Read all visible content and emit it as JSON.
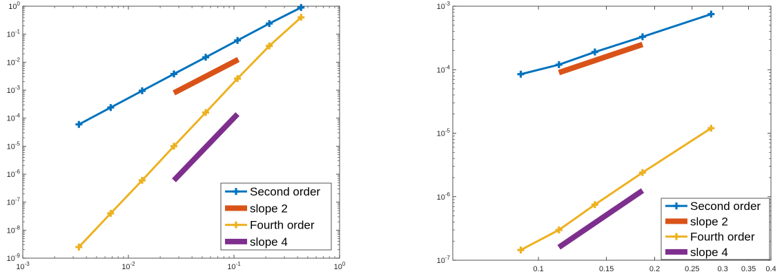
{
  "chart_data": [
    {
      "type": "line",
      "xscale": "log",
      "yscale": "log",
      "xlim": [
        0.001,
        1
      ],
      "ylim": [
        1e-09,
        1
      ],
      "xticks": [
        0.001,
        0.01,
        0.1,
        1
      ],
      "yticks": [
        1e-09,
        1e-08,
        1e-07,
        1e-06,
        1e-05,
        0.0001,
        0.001,
        0.01,
        0.1,
        1
      ],
      "grid": false,
      "legend_placement": "bottom-right",
      "series": [
        {
          "name": "Second order",
          "color": "#0072BD",
          "marker": "plus",
          "x": [
            0.0034,
            0.0068,
            0.0135,
            0.027,
            0.054,
            0.108,
            0.216,
            0.432
          ],
          "y": [
            6e-05,
            0.00024,
            0.00095,
            0.0038,
            0.015,
            0.06,
            0.24,
            0.9
          ]
        },
        {
          "name": "slope 2",
          "color": "#D95319",
          "marker": "none",
          "thick": true,
          "x": [
            0.027,
            0.11
          ],
          "y": [
            0.0008,
            0.0125
          ]
        },
        {
          "name": "Fourth order",
          "color": "#EDB120",
          "marker": "plus",
          "x": [
            0.0034,
            0.0068,
            0.0135,
            0.027,
            0.054,
            0.108,
            0.216,
            0.432
          ],
          "y": [
            2.5e-09,
            4e-08,
            6e-07,
            1e-05,
            0.00016,
            0.0026,
            0.038,
            0.4
          ]
        },
        {
          "name": "slope 4",
          "color": "#7E2F8E",
          "marker": "none",
          "thick": true,
          "x": [
            0.027,
            0.108
          ],
          "y": [
            6e-07,
            0.00014
          ]
        }
      ]
    },
    {
      "type": "line",
      "xscale": "log",
      "yscale": "log",
      "xlim": [
        0.06,
        0.4
      ],
      "ylim": [
        1e-07,
        0.001
      ],
      "xticks": [
        0.1,
        0.15,
        0.2,
        0.25,
        0.3,
        0.35,
        0.4
      ],
      "yticks": [
        1e-07,
        1e-06,
        1e-05,
        0.0001,
        0.001
      ],
      "grid": false,
      "legend_placement": "bottom-right",
      "series": [
        {
          "name": "Second order",
          "color": "#0072BD",
          "marker": "plus",
          "x": [
            0.09,
            0.113,
            0.14,
            0.186,
            0.28
          ],
          "y": [
            8.5e-05,
            0.00012,
            0.00019,
            0.00033,
            0.00075
          ]
        },
        {
          "name": "slope 2",
          "color": "#D95319",
          "marker": "none",
          "thick": true,
          "x": [
            0.113,
            0.186
          ],
          "y": [
            9e-05,
            0.00025
          ]
        },
        {
          "name": "Fourth order",
          "color": "#EDB120",
          "marker": "plus",
          "x": [
            0.09,
            0.113,
            0.14,
            0.186,
            0.28
          ],
          "y": [
            1.45e-07,
            3e-07,
            7.5e-07,
            2.4e-06,
            1.2e-05
          ]
        },
        {
          "name": "slope 4",
          "color": "#7E2F8E",
          "marker": "none",
          "thick": true,
          "x": [
            0.113,
            0.186
          ],
          "y": [
            1.6e-07,
            1.25e-06
          ]
        }
      ]
    }
  ]
}
